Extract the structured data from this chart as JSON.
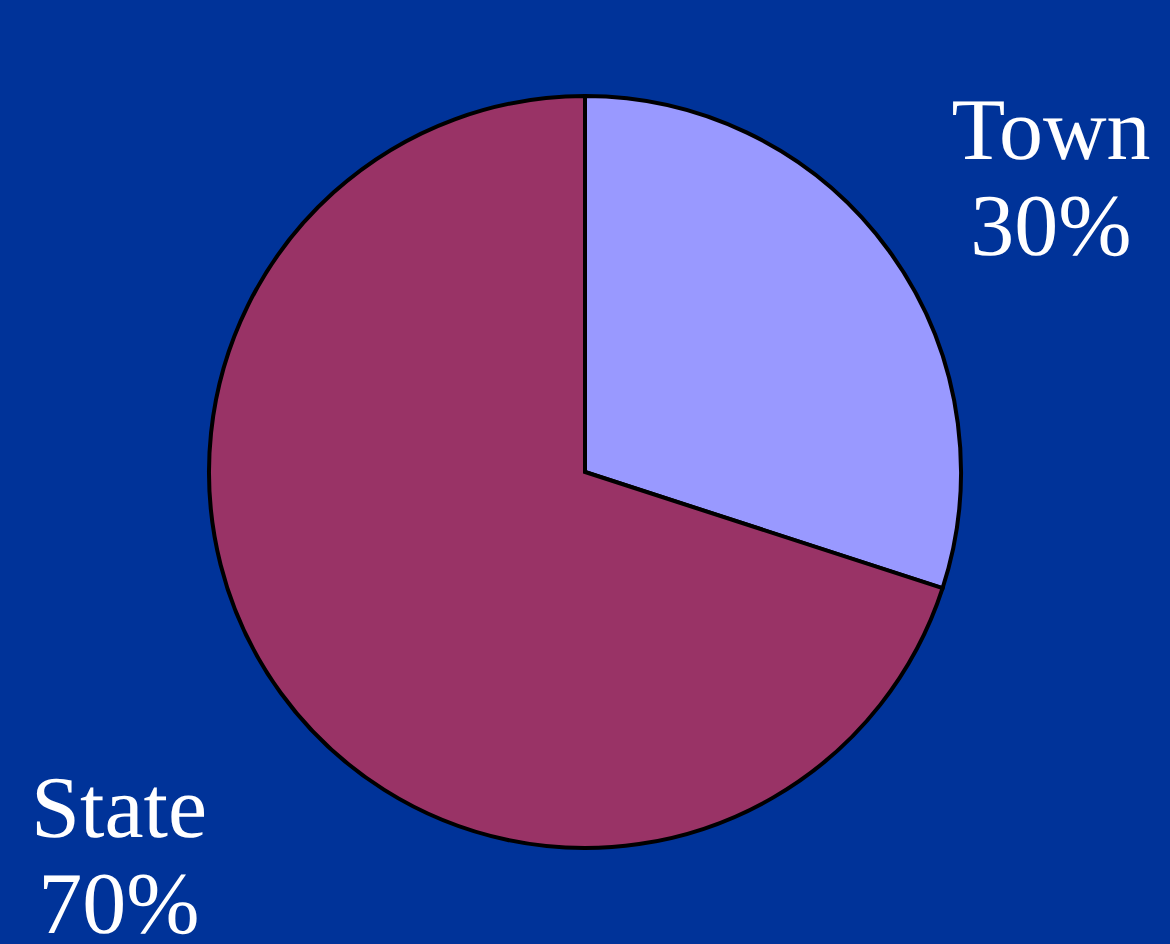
{
  "chart_data": {
    "type": "pie",
    "categories": [
      "Town",
      "State"
    ],
    "values": [
      30,
      70
    ],
    "colors": [
      "#9999ff",
      "#993366"
    ],
    "value_labels": [
      "30%",
      "70%"
    ]
  }
}
